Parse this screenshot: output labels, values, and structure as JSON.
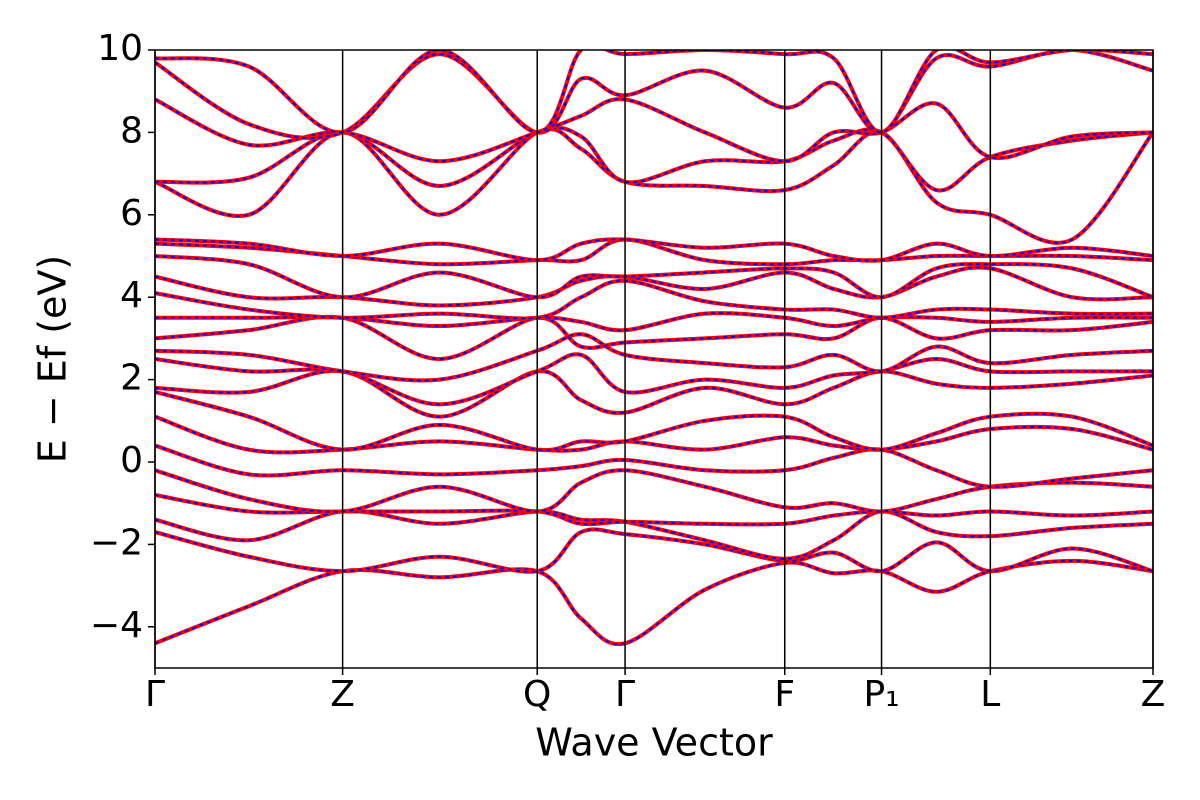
{
  "chart_data": {
    "type": "line",
    "x_label": "Wave Vector",
    "y_label": "E − Ef (eV)",
    "xlim": [
      0,
      1
    ],
    "ylim": [
      -5,
      10
    ],
    "xticks": [
      {
        "value": 0,
        "label": "Γ"
      },
      {
        "value": 0.188,
        "label": "Z"
      },
      {
        "value": 0.383,
        "label": "Q"
      },
      {
        "value": 0.471,
        "label": "Γ"
      },
      {
        "value": 0.631,
        "label": "F"
      },
      {
        "value": 0.728,
        "label": "P₁"
      },
      {
        "value": 0.837,
        "label": "L"
      },
      {
        "value": 1,
        "label": "Z"
      }
    ],
    "yticks": [
      {
        "value": -4,
        "label": "−4"
      },
      {
        "value": -2,
        "label": "−2"
      },
      0,
      2,
      4,
      6,
      8,
      10
    ],
    "color": "#ff0000",
    "overlay_color": "#0000ff",
    "x": [
      0,
      0.094,
      0.188,
      0.285,
      0.383,
      0.427,
      0.471,
      0.551,
      0.631,
      0.68,
      0.728,
      0.783,
      0.837,
      0.919,
      1
    ],
    "series": [
      {
        "values": [
          -4.4,
          -3.5,
          -2.65,
          -2.8,
          -2.65,
          -3.8,
          -4.4,
          -3.1,
          -2.45,
          -2.7,
          -2.65,
          -3.15,
          -2.65,
          -2.4,
          -2.65
        ]
      },
      {
        "values": [
          -1.7,
          -2.3,
          -2.65,
          -2.3,
          -2.65,
          -1.7,
          -1.75,
          -2.0,
          -2.4,
          -2.2,
          -2.65,
          -1.95,
          -2.65,
          -2.1,
          -2.65
        ]
      },
      {
        "values": [
          -1.4,
          -1.9,
          -1.2,
          -1.5,
          -1.2,
          -1.4,
          -1.45,
          -1.9,
          -2.35,
          -1.9,
          -1.2,
          -1.7,
          -1.8,
          -1.6,
          -1.5
        ]
      },
      {
        "values": [
          -0.8,
          -1.2,
          -1.2,
          -1.2,
          -1.2,
          -1.5,
          -1.45,
          -1.5,
          -1.5,
          -1.3,
          -1.2,
          -1.3,
          -1.2,
          -1.3,
          -1.2
        ]
      },
      {
        "values": [
          -0.2,
          -0.9,
          -1.2,
          -0.6,
          -1.2,
          -0.5,
          -0.2,
          -0.6,
          -1.1,
          -1.0,
          -1.2,
          -0.9,
          -0.6,
          -0.5,
          -0.6
        ]
      },
      {
        "values": [
          0.4,
          -0.3,
          -0.2,
          -0.3,
          -0.2,
          -0.1,
          0.05,
          -0.2,
          -0.2,
          0.1,
          0.3,
          -0.2,
          -0.6,
          -0.4,
          -0.2
        ]
      },
      {
        "values": [
          1.1,
          0.3,
          0.3,
          0.5,
          0.3,
          0.3,
          0.5,
          0.3,
          0.6,
          0.4,
          0.3,
          0.5,
          0.8,
          0.8,
          0.3
        ]
      },
      {
        "values": [
          1.7,
          1.1,
          0.3,
          0.9,
          0.3,
          0.5,
          0.5,
          1.0,
          1.1,
          0.6,
          0.3,
          0.7,
          1.1,
          1.1,
          0.4
        ]
      },
      {
        "values": [
          1.8,
          1.7,
          2.2,
          1.1,
          2.2,
          1.5,
          1.2,
          1.8,
          1.4,
          1.8,
          2.2,
          1.9,
          1.8,
          1.9,
          2.1
        ]
      },
      {
        "values": [
          2.5,
          2.2,
          2.2,
          1.4,
          2.2,
          2.6,
          1.7,
          2.0,
          1.8,
          2.1,
          2.2,
          2.5,
          2.2,
          2.2,
          2.2
        ]
      },
      {
        "values": [
          2.7,
          2.6,
          2.2,
          2.0,
          2.7,
          3.1,
          2.6,
          2.4,
          2.3,
          2.6,
          2.2,
          2.8,
          2.4,
          2.6,
          2.7
        ]
      },
      {
        "values": [
          3.0,
          3.2,
          3.5,
          2.5,
          3.5,
          2.8,
          2.9,
          3.0,
          3.1,
          3.0,
          3.5,
          3.0,
          3.2,
          3.2,
          3.4
        ]
      },
      {
        "values": [
          3.5,
          3.5,
          3.5,
          3.3,
          3.5,
          3.4,
          3.2,
          3.6,
          3.5,
          3.3,
          3.5,
          3.5,
          3.4,
          3.5,
          3.5
        ]
      },
      {
        "values": [
          4.1,
          3.7,
          3.5,
          3.6,
          3.5,
          4.0,
          4.4,
          3.9,
          3.7,
          3.7,
          3.5,
          3.7,
          3.7,
          3.6,
          3.6
        ]
      },
      {
        "values": [
          4.5,
          4.0,
          4.0,
          3.8,
          4.0,
          4.4,
          4.5,
          4.2,
          4.6,
          4.2,
          4.0,
          4.5,
          4.7,
          4.0,
          4.0
        ]
      },
      {
        "values": [
          5.0,
          4.8,
          4.0,
          4.6,
          4.0,
          4.5,
          4.5,
          4.6,
          4.7,
          4.6,
          4.0,
          4.7,
          4.8,
          4.7,
          4.0
        ]
      },
      {
        "values": [
          5.3,
          5.2,
          5.0,
          4.8,
          4.9,
          4.9,
          5.4,
          4.9,
          4.8,
          4.9,
          4.9,
          5.0,
          5.0,
          5.0,
          4.9
        ]
      },
      {
        "values": [
          5.4,
          5.3,
          5.0,
          5.3,
          4.9,
          5.3,
          5.4,
          5.2,
          5.3,
          5.0,
          4.9,
          5.3,
          5.0,
          5.2,
          5.0
        ]
      },
      {
        "values": [
          6.8,
          6.0,
          8.0,
          6.0,
          8.0,
          7.6,
          6.8,
          6.7,
          6.6,
          7.2,
          8.0,
          6.3,
          6.0,
          5.4,
          8.0
        ]
      },
      {
        "values": [
          6.8,
          6.9,
          8.0,
          6.7,
          8.0,
          7.9,
          6.8,
          7.3,
          7.3,
          7.8,
          8.0,
          6.6,
          7.4,
          7.8,
          8.0
        ]
      },
      {
        "values": [
          8.8,
          7.7,
          8.0,
          7.3,
          8.0,
          8.4,
          8.8,
          8.0,
          7.3,
          8.0,
          8.0,
          8.7,
          7.4,
          7.9,
          8.0
        ]
      },
      {
        "values": [
          9.7,
          8.2,
          8.0,
          9.9,
          8.0,
          9.3,
          8.9,
          9.5,
          8.6,
          9.2,
          8.0,
          9.8,
          9.6,
          10,
          9.5
        ]
      },
      {
        "values": [
          9.8,
          9.6,
          8.0,
          10,
          8.0,
          10,
          9.9,
          10,
          9.9,
          9.8,
          8.0,
          10,
          9.7,
          10,
          9.9
        ]
      }
    ]
  }
}
